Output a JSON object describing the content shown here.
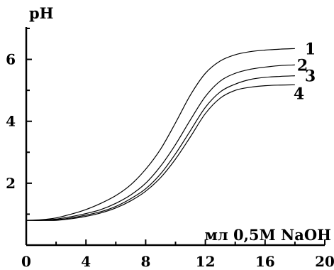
{
  "chart_data": {
    "type": "line",
    "title": "",
    "xlabel": "мл 0,5М NaOH",
    "ylabel": "pH",
    "xlim": [
      0,
      20
    ],
    "ylim": [
      0,
      7
    ],
    "x_ticks": [
      0,
      4,
      8,
      12,
      16,
      20
    ],
    "y_ticks": [
      2,
      4,
      6
    ],
    "grid": false,
    "series": [
      {
        "name": "1",
        "x": [
          0,
          1,
          2,
          3,
          4,
          5,
          6,
          7,
          8,
          9,
          10,
          11,
          12,
          13,
          14,
          15,
          16,
          17,
          18
        ],
        "y": [
          0.8,
          0.82,
          0.88,
          1.0,
          1.15,
          1.35,
          1.6,
          1.95,
          2.45,
          3.1,
          3.95,
          4.85,
          5.55,
          5.95,
          6.15,
          6.25,
          6.3,
          6.33,
          6.35
        ]
      },
      {
        "name": "2",
        "x": [
          0,
          1,
          2,
          3,
          4,
          5,
          6,
          7,
          8,
          9,
          10,
          11,
          12,
          13,
          14,
          15,
          16,
          17,
          18
        ],
        "y": [
          0.8,
          0.8,
          0.84,
          0.92,
          1.02,
          1.15,
          1.35,
          1.62,
          2.0,
          2.55,
          3.25,
          4.05,
          4.8,
          5.3,
          5.55,
          5.68,
          5.75,
          5.8,
          5.82
        ]
      },
      {
        "name": "3",
        "x": [
          0,
          1,
          2,
          3,
          4,
          5,
          6,
          7,
          8,
          9,
          10,
          11,
          12,
          13,
          14,
          15,
          16,
          17,
          18
        ],
        "y": [
          0.8,
          0.8,
          0.82,
          0.88,
          0.97,
          1.08,
          1.25,
          1.5,
          1.82,
          2.3,
          2.95,
          3.7,
          4.45,
          4.95,
          5.2,
          5.35,
          5.42,
          5.45,
          5.47
        ]
      },
      {
        "name": "4",
        "x": [
          0,
          1,
          2,
          3,
          4,
          5,
          6,
          7,
          8,
          9,
          10,
          11,
          12,
          13,
          14,
          15,
          16,
          17,
          18
        ],
        "y": [
          0.8,
          0.8,
          0.8,
          0.85,
          0.93,
          1.04,
          1.2,
          1.43,
          1.74,
          2.18,
          2.78,
          3.5,
          4.25,
          4.75,
          5.0,
          5.1,
          5.15,
          5.17,
          5.18
        ]
      }
    ]
  }
}
